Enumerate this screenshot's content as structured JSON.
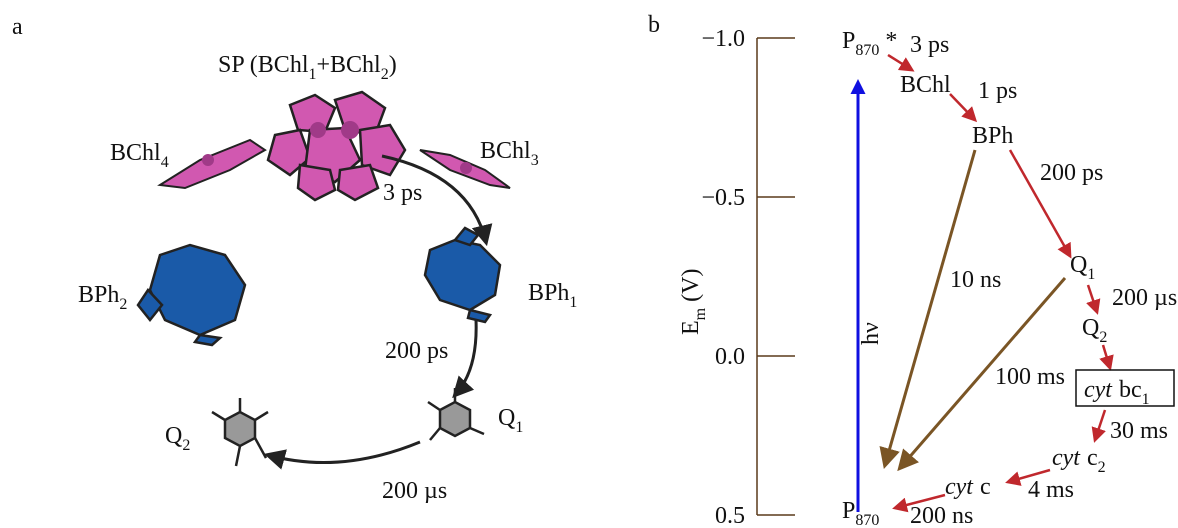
{
  "panel_a": {
    "label": "a",
    "title": [
      "SP (BChl",
      "1",
      "+BChl",
      "2",
      ")"
    ],
    "molecules": {
      "bchl4": {
        "text": "BChl",
        "sub": "4"
      },
      "bchl3": {
        "text": "BChl",
        "sub": "3"
      },
      "bph2": {
        "text": "BPh",
        "sub": "2"
      },
      "bph1": {
        "text": "BPh",
        "sub": "1"
      },
      "q1": {
        "text": "Q",
        "sub": "1"
      },
      "q2": {
        "text": "Q",
        "sub": "2"
      }
    },
    "rates": {
      "sp_bph1": "3 ps",
      "bph1_q1": "200 ps",
      "q1_q2": "200 µs"
    }
  },
  "panel_b": {
    "label": "b",
    "axis_label": {
      "text": "E",
      "sub": "m",
      "after": "(V)"
    },
    "ylim": [
      -1.0,
      0.5
    ],
    "yticks": [
      {
        "value": -1.0,
        "label": "−1.0"
      },
      {
        "value": -0.5,
        "label": "−0.5"
      },
      {
        "value": 0.0,
        "label": "0.0"
      },
      {
        "value": 0.5,
        "label": "0.5"
      }
    ],
    "nodes": {
      "p870_excited": {
        "text": "P",
        "sub": "870",
        "after": "*"
      },
      "bchl": {
        "text": "BChl"
      },
      "bph": {
        "text": "BPh"
      },
      "q1": {
        "text": "Q",
        "sub": "1"
      },
      "q2": {
        "text": "Q",
        "sub": "2"
      },
      "cyt_bc1": {
        "italic": "cyt",
        "text": "bc",
        "sub": "1"
      },
      "cyt_c2": {
        "italic": "cyt",
        "text": "c",
        "sub": "2"
      },
      "cyt_c": {
        "italic": "cyt",
        "text": "c"
      },
      "p870": {
        "text": "P",
        "sub": "870"
      }
    },
    "excitation": "hν",
    "rates": {
      "p_bchl": "3 ps",
      "bchl_bph": "1 ps",
      "bph_q1": "200 ps",
      "bph_p": "10 ns",
      "q1_q2": "200 µs",
      "q1_p": "100 ms",
      "bc1_c2": "30 ms",
      "c2_c": "4 ms",
      "c_p": "200 ns"
    }
  }
}
